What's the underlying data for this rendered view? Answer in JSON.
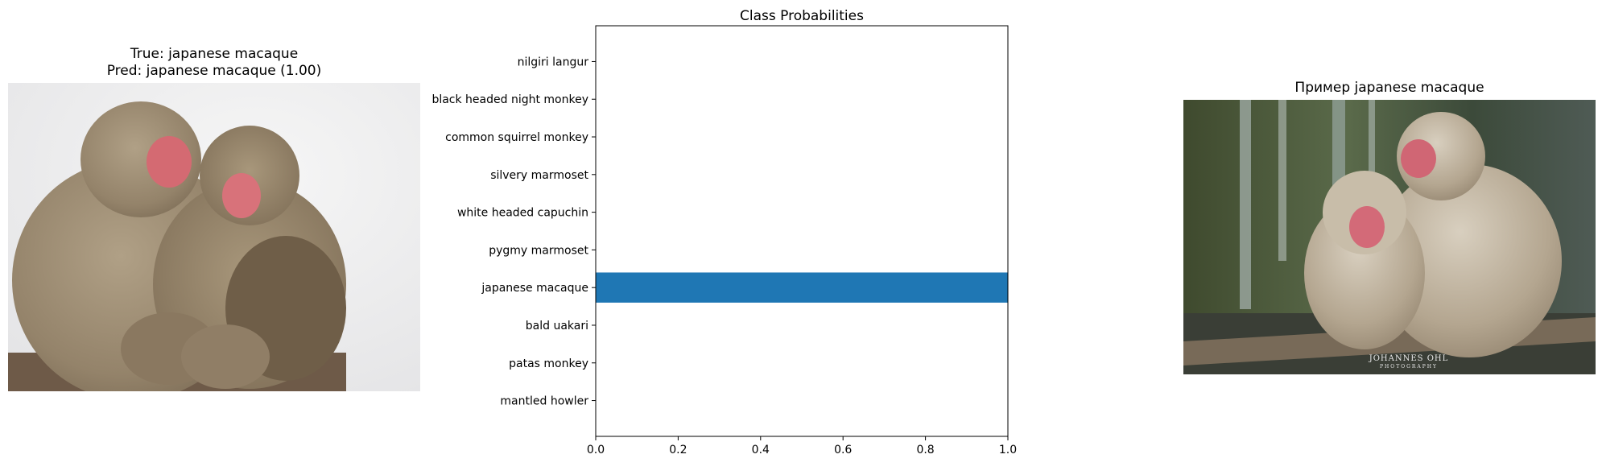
{
  "left_panel": {
    "title_true": "True: japanese macaque",
    "title_pred": "Pred: japanese macaque (1.00)"
  },
  "chart_data": {
    "type": "bar",
    "orientation": "horizontal",
    "title": "Class Probabilities",
    "categories": [
      "mantled howler",
      "patas monkey",
      "bald uakari",
      "japanese macaque",
      "pygmy marmoset",
      "white headed capuchin",
      "silvery marmoset",
      "common squirrel monkey",
      "black headed night monkey",
      "nilgiri langur"
    ],
    "values": [
      0,
      0,
      0,
      1.0,
      0,
      0,
      0,
      0,
      0,
      0
    ],
    "xlim": [
      0,
      1
    ],
    "xticks": [
      "0.0",
      "0.2",
      "0.4",
      "0.6",
      "0.8",
      "1.0"
    ],
    "xlabel": "",
    "ylabel": "",
    "grid": false,
    "bar_color": "#1f77b4"
  },
  "right_panel": {
    "title": "Пример japanese macaque",
    "watermark_line1": "JOHANNES OHL",
    "watermark_line2": "PHOTOGRAPHY"
  }
}
